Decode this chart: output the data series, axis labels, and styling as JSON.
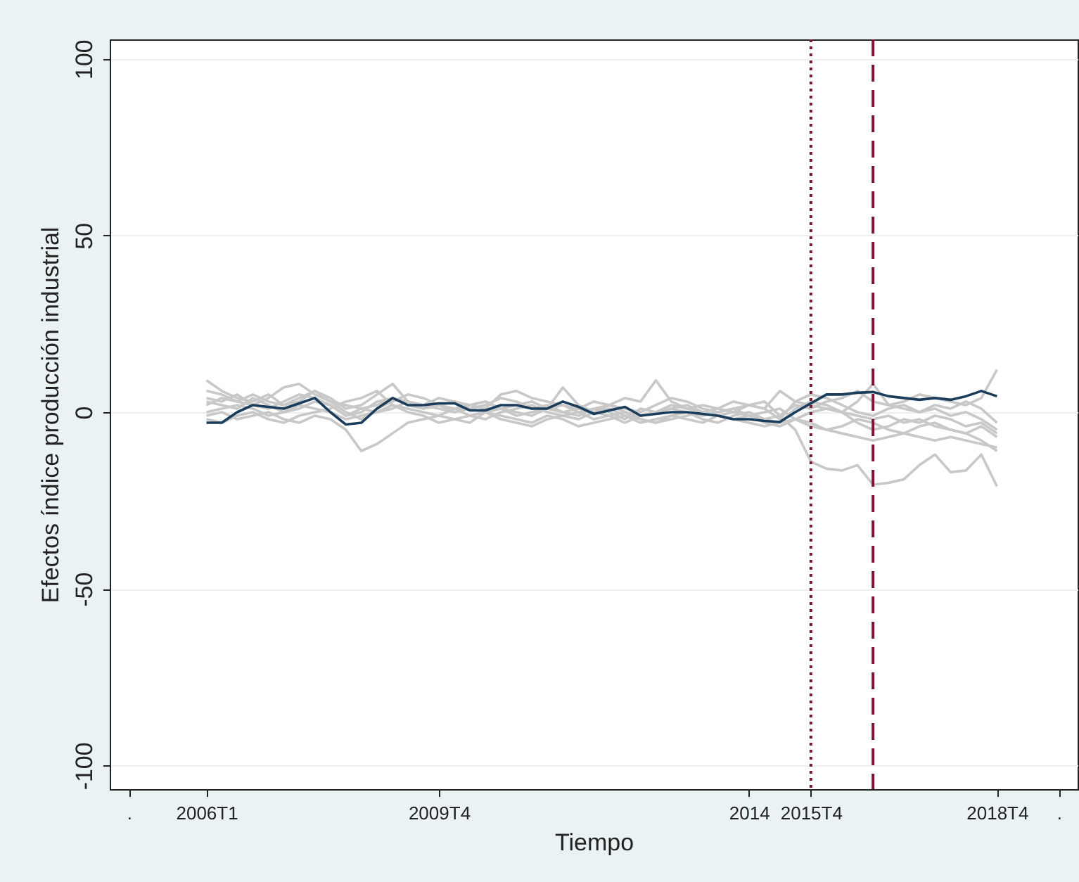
{
  "chart_data": {
    "type": "line",
    "xlabel": "Tiempo",
    "ylabel": "Efectos índice producción industrial",
    "x": [
      "2006-01",
      "2006-04",
      "2006-07",
      "2006-10",
      "2007-01",
      "2007-04",
      "2007-07",
      "2007-10",
      "2008-01",
      "2008-04",
      "2008-07",
      "2008-10",
      "2009-01",
      "2009-04",
      "2009-07",
      "2009-10",
      "2010-01",
      "2010-04",
      "2010-07",
      "2010-10",
      "2011-01",
      "2011-04",
      "2011-07",
      "2011-10",
      "2012-01",
      "2012-04",
      "2012-07",
      "2012-10",
      "2013-01",
      "2013-04",
      "2013-07",
      "2013-10",
      "2014-01",
      "2014-04",
      "2014-07",
      "2014-10",
      "2015-01",
      "2015-04",
      "2015-07",
      "2015-10",
      "2016-01",
      "2016-04",
      "2016-07",
      "2016-10",
      "2017-01",
      "2017-04",
      "2017-07",
      "2017-10",
      "2018-01",
      "2018-04",
      "2018-07",
      "2018-10"
    ],
    "series": [
      {
        "color": "#c8c8c8",
        "values": [
          3,
          2,
          1,
          4,
          2,
          0,
          1,
          3,
          2,
          -1,
          0,
          3,
          4,
          2,
          1,
          2,
          3,
          1,
          0,
          1,
          2,
          3,
          1,
          0,
          -1,
          1,
          2,
          0,
          -1,
          0,
          1,
          0,
          -1,
          0,
          1,
          -1,
          -2,
          -1,
          -5,
          -14,
          -16,
          -16.5,
          -15,
          -20.5,
          -20,
          -19,
          -15,
          -12,
          -17,
          -16.5,
          -12,
          -21
        ]
      },
      {
        "color": "#c8c8c8",
        "values": [
          9,
          6,
          4,
          3,
          5,
          2,
          3,
          6,
          4,
          1,
          2,
          5,
          8,
          3,
          2,
          1,
          0,
          2,
          3,
          1,
          0,
          -1,
          1,
          2,
          0,
          1,
          0,
          -2,
          1,
          0,
          2,
          1,
          0,
          -1,
          0,
          -1,
          0,
          1,
          -2,
          -4,
          -5,
          -6,
          -7,
          -8,
          -7,
          -6,
          -7,
          -8,
          -7,
          -8,
          -9,
          -10
        ]
      },
      {
        "color": "#c8c8c8",
        "values": [
          6,
          5,
          3,
          2,
          4,
          7,
          8,
          5,
          3,
          2,
          1,
          0,
          1,
          3,
          2,
          4,
          3,
          2,
          1,
          5,
          6,
          4,
          3,
          2,
          1,
          0,
          2,
          4,
          3,
          9,
          3,
          1,
          2,
          1,
          0,
          2,
          3,
          -1,
          2,
          1,
          3,
          4,
          6,
          3,
          2,
          3,
          5,
          4,
          3,
          2,
          4,
          12
        ]
      },
      {
        "color": "#c8c8c8",
        "values": [
          -1,
          0,
          -2,
          -1,
          0,
          -2,
          -3,
          -1,
          -2,
          -5,
          -11,
          -9,
          -6,
          -3,
          -2,
          -1,
          -2,
          -3,
          0,
          -1,
          -2,
          -3,
          -1,
          -2,
          -4,
          -3,
          -2,
          -1,
          -3,
          -2,
          -1,
          -2,
          -3,
          -1,
          -2,
          -3,
          -4,
          -3,
          -2,
          0,
          1,
          0,
          -1,
          -2,
          -1,
          -3,
          -2,
          -4,
          -5,
          -6,
          -8,
          -11
        ]
      },
      {
        "color": "#c8c8c8",
        "values": [
          0,
          1,
          2,
          1,
          -1,
          0,
          2,
          1,
          0,
          -2,
          -1,
          0,
          2,
          1,
          0,
          -1,
          1,
          2,
          3,
          1,
          -1,
          0,
          1,
          7,
          2,
          0,
          -1,
          -3,
          -1,
          0,
          1,
          2,
          0,
          1,
          3,
          2,
          1,
          6,
          3,
          2,
          1,
          0,
          3,
          8,
          2,
          1,
          0,
          2,
          1,
          3,
          1,
          -3
        ]
      },
      {
        "color": "#c8c8c8",
        "values": [
          -2,
          -3,
          -1,
          0,
          -2,
          -3,
          -1,
          0,
          1,
          3,
          4,
          6,
          2,
          0,
          -1,
          -3,
          -2,
          -1,
          0,
          -2,
          -3,
          -4,
          -2,
          -1,
          0,
          -2,
          -1,
          0,
          -2,
          -3,
          -2,
          -1,
          0,
          -1,
          -2,
          -1,
          -3,
          -4,
          -2,
          -3,
          -5,
          -4,
          -2,
          -3,
          -5,
          -6,
          -4,
          -3,
          -5,
          -6,
          -4,
          -7
        ]
      },
      {
        "color": "#c8c8c8",
        "values": [
          2,
          4,
          3,
          5,
          3,
          2,
          4,
          6,
          3,
          0,
          -2,
          1,
          3,
          5,
          4,
          2,
          0,
          1,
          2,
          4,
          3,
          1,
          2,
          0,
          1,
          3,
          2,
          1,
          0,
          2,
          4,
          3,
          1,
          0,
          1,
          2,
          1,
          -2,
          3,
          5,
          4,
          2,
          0,
          -1,
          1,
          2,
          0,
          1,
          -1,
          0,
          -2,
          -5
        ]
      },
      {
        "color": "#c8c8c8",
        "values": [
          4,
          3,
          5,
          2,
          1,
          3,
          5,
          4,
          2,
          -1,
          1,
          2,
          4,
          3,
          1,
          2,
          1,
          -1,
          -2,
          0,
          1,
          2,
          0,
          -1,
          -2,
          0,
          1,
          -1,
          -2,
          -3,
          -1,
          0,
          -2,
          -3,
          -1,
          0,
          -2,
          -3,
          1,
          3,
          2,
          0,
          -3,
          -5,
          -4,
          -2,
          -3,
          -1,
          -2,
          -4,
          -3,
          -6
        ]
      },
      {
        "color": "#1a3d5c",
        "values": [
          -3,
          -3,
          0,
          2,
          1.5,
          1,
          2.5,
          4,
          0,
          -3.5,
          -3,
          1,
          4,
          2,
          2,
          2.5,
          2.5,
          0.5,
          0.5,
          2,
          2,
          1,
          1,
          3,
          1.5,
          -0.5,
          0.5,
          1.5,
          -1,
          -0.5,
          0,
          0,
          -0.5,
          -1,
          -2,
          -2,
          -2.5,
          -2.8,
          0,
          2.5,
          5,
          5,
          5.5,
          5.7,
          4.5,
          4,
          3.5,
          4,
          3.5,
          4.5,
          6,
          4.5
        ]
      }
    ],
    "xlim": [
      "2004-06-10",
      "2020-01-19"
    ],
    "xticks": [
      {
        "value": "2004-10",
        "label": "."
      },
      {
        "value": "2006-01",
        "label": "2006T1"
      },
      {
        "value": "2009-10",
        "label": "2009T4"
      },
      {
        "value": "2014-10",
        "label": "2014"
      },
      {
        "value": "2015-10",
        "label": "2015T4"
      },
      {
        "value": "2018-10",
        "label": "2018T4"
      },
      {
        "value": "2019-10",
        "label": "."
      }
    ],
    "ylim": [
      -106.7,
      105.5
    ],
    "yticks": [
      -100,
      -50,
      0,
      50,
      100
    ],
    "ref_lines": [
      {
        "axis": "x",
        "value": "2015-10",
        "color": "#7f1734",
        "line_style": "dotted"
      },
      {
        "axis": "x",
        "value": "2016-10",
        "color": "#7f1734",
        "line_style": "dashed"
      }
    ],
    "grid": "y",
    "legend": false,
    "marker": "none",
    "line_style": "solid"
  }
}
